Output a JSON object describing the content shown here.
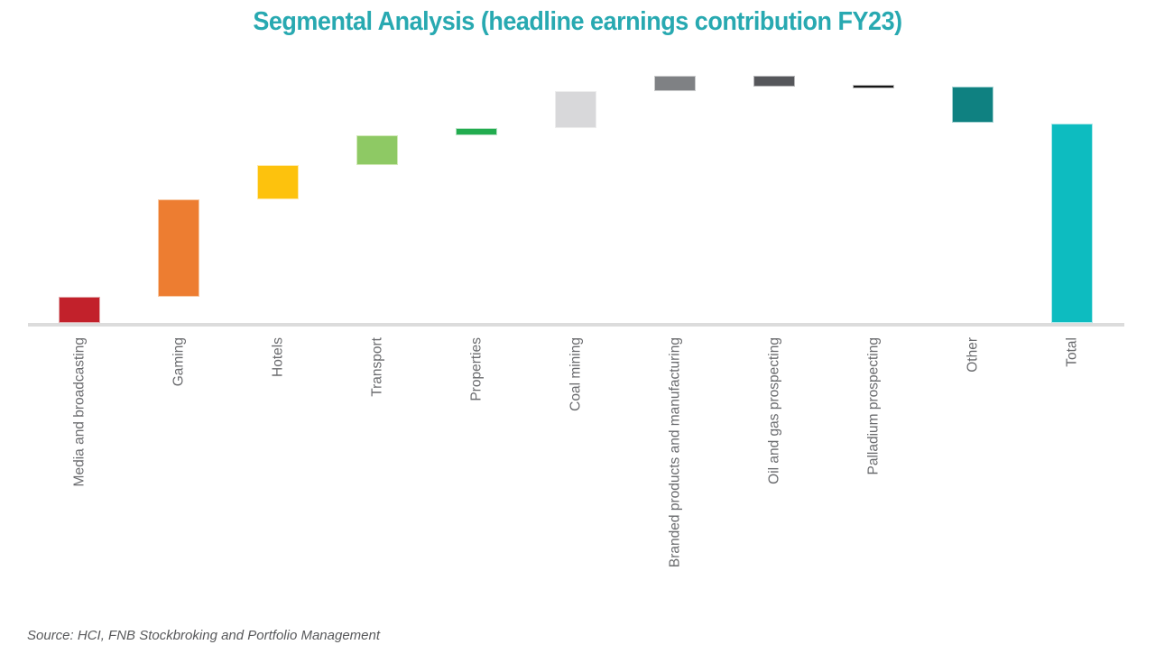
{
  "title": "Segmental Analysis (headline earnings contribution FY23)",
  "source": "Source: HCI, FNB Stockbroking and Portfolio Management",
  "colors": {
    "title": "#28A9B1",
    "axis_line": "#DCDCDC",
    "category_label": "#6A6B6E",
    "source_text": "#58595B",
    "background": "#FFFFFF"
  },
  "chart_data": {
    "type": "bar",
    "subtype": "waterfall",
    "title": "Segmental Analysis (headline earnings contribution FY23)",
    "xlabel": "",
    "ylabel": "",
    "ylim": [
      0,
      125
    ],
    "grid": false,
    "value_axis_labels": false,
    "legend_position": "none",
    "categories": [
      "Media and broadcasting",
      "Gaming",
      "Hotels",
      "Transport",
      "Properties",
      "Coal mining",
      "Branded products and manufacturing",
      "Oil and gas prospecting",
      "Palladium prospecting",
      "Other",
      "Total"
    ],
    "series": [
      {
        "name": "Media and broadcasting",
        "value": 13,
        "measure": "relative",
        "fill": "#C2212B",
        "border": "#E2A9AC"
      },
      {
        "name": "Gaming",
        "value": 49,
        "measure": "relative",
        "fill": "#ED7D31",
        "border": "#F8C9A4"
      },
      {
        "name": "Hotels",
        "value": 17,
        "measure": "relative",
        "fill": "#FDC20D",
        "border": "#FEE9A8"
      },
      {
        "name": "Transport",
        "value": 15,
        "measure": "relative",
        "fill": "#8EC964",
        "border": "#D2EAB8"
      },
      {
        "name": "Properties",
        "value": 3.5,
        "measure": "relative",
        "fill": "#22AC4F",
        "border": "#B5E0C3"
      },
      {
        "name": "Coal mining",
        "value": 18.5,
        "measure": "relative",
        "fill": "#D8D8DA",
        "border": "#EDEDED"
      },
      {
        "name": "Branded products and manufacturing",
        "value": 7.5,
        "measure": "relative",
        "fill": "#7F8184",
        "border": "#CACBCC"
      },
      {
        "name": "Oil and gas prospecting",
        "value": -5,
        "measure": "relative",
        "fill": "#56575B",
        "border": "#B5B5B7"
      },
      {
        "name": "Palladium prospecting",
        "value": 0,
        "measure": "relative",
        "fill": "#161616",
        "border": "#BDBDBD"
      },
      {
        "name": "Other",
        "value": -18.5,
        "measure": "relative",
        "fill": "#0F8181",
        "border": "#A3D2D2"
      },
      {
        "name": "Total",
        "value": 100,
        "measure": "total",
        "fill": "#0DBCC0",
        "border": "#AEE8EA"
      }
    ]
  }
}
